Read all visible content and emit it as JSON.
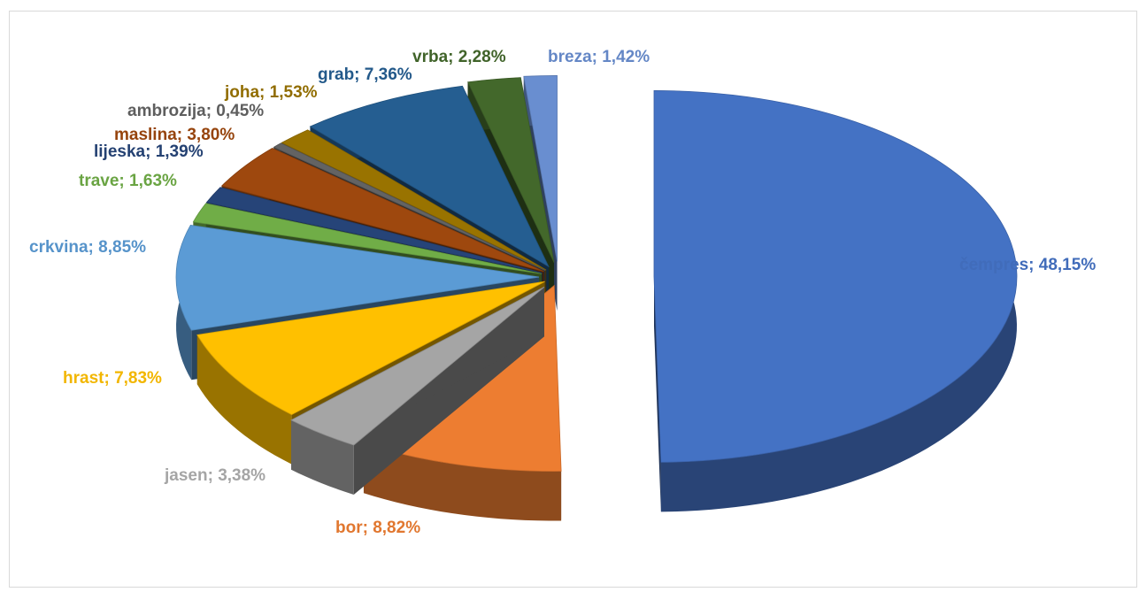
{
  "chart_data": {
    "type": "pie",
    "style": "3d-exploded",
    "title": "",
    "legend": "none",
    "data_labels": "category; percent",
    "slices": [
      {
        "name": "čempres",
        "value": 48.15,
        "label": "čempres; 48,15%",
        "color": "#4472c4"
      },
      {
        "name": "bor",
        "value": 8.82,
        "label": "bor; 8,82%",
        "color": "#ed7d31"
      },
      {
        "name": "jasen",
        "value": 3.38,
        "label": "jasen; 3,38%",
        "color": "#a5a5a5"
      },
      {
        "name": "hrast",
        "value": 7.83,
        "label": "hrast; 7,83%",
        "color": "#ffc000"
      },
      {
        "name": "crkvina",
        "value": 8.85,
        "label": "crkvina; 8,85%",
        "color": "#5b9bd5"
      },
      {
        "name": "trave",
        "value": 1.63,
        "label": "trave; 1,63%",
        "color": "#70ad47"
      },
      {
        "name": "lijeska",
        "value": 1.39,
        "label": "lijeska; 1,39%",
        "color": "#264478"
      },
      {
        "name": "maslina",
        "value": 3.8,
        "label": "maslina; 3,80%",
        "color": "#9e480e"
      },
      {
        "name": "ambrozija",
        "value": 0.45,
        "label": "ambrozija; 0,45%",
        "color": "#636363"
      },
      {
        "name": "joha",
        "value": 1.53,
        "label": "joha; 1,53%",
        "color": "#997300"
      },
      {
        "name": "grab",
        "value": 7.36,
        "label": "grab; 7,36%",
        "color": "#255e91"
      },
      {
        "name": "vrba",
        "value": 2.28,
        "label": "vrba; 2,28%",
        "color": "#43682b"
      },
      {
        "name": "breza",
        "value": 1.42,
        "label": "breza; 1,42%",
        "color": "#698ed0"
      }
    ]
  }
}
